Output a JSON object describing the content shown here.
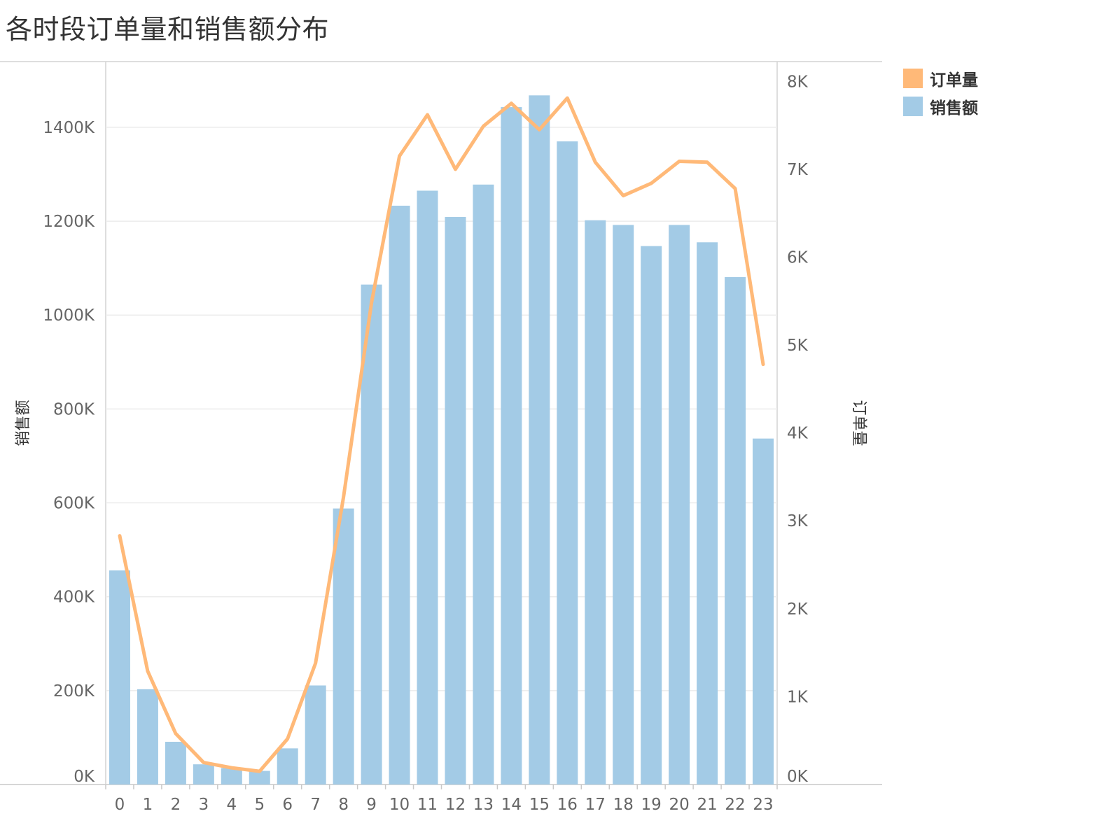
{
  "chart_data": {
    "type": "bar",
    "title": "各时段订单量和销售额分布",
    "categories": [
      "0",
      "1",
      "2",
      "3",
      "4",
      "5",
      "6",
      "7",
      "8",
      "9",
      "10",
      "11",
      "12",
      "13",
      "14",
      "15",
      "16",
      "17",
      "18",
      "19",
      "20",
      "21",
      "22",
      "23"
    ],
    "series": [
      {
        "name": "销售额",
        "type": "bar",
        "axis": "left",
        "color": "#a3cbe6",
        "values": [
          456,
          203,
          91,
          43,
          35,
          29,
          77,
          211,
          588,
          1065,
          1233,
          1265,
          1209,
          1278,
          1443,
          1468,
          1370,
          1202,
          1192,
          1147,
          1192,
          1155,
          1081,
          737
        ]
      },
      {
        "name": "订单量",
        "type": "line",
        "axis": "right",
        "color": "#ffb978",
        "values": [
          2830,
          1290,
          580,
          250,
          190,
          150,
          520,
          1380,
          3270,
          5480,
          7150,
          7620,
          7000,
          7490,
          7750,
          7450,
          7810,
          7080,
          6700,
          6840,
          7090,
          7080,
          6780,
          4780
        ]
      }
    ],
    "y_left": {
      "label": "销售额",
      "range": [
        0,
        1540
      ],
      "ticks": [
        0,
        200,
        400,
        600,
        800,
        1000,
        1200,
        1400
      ],
      "tick_labels": [
        "0K",
        "200K",
        "400K",
        "600K",
        "800K",
        "1000K",
        "1200K",
        "1400K"
      ]
    },
    "y_right": {
      "label": "订单量",
      "range": [
        0,
        8225
      ],
      "ticks": [
        0,
        1000,
        2000,
        3000,
        4000,
        5000,
        6000,
        7000,
        8000
      ],
      "tick_labels": [
        "0K",
        "1K",
        "2K",
        "3K",
        "4K",
        "5K",
        "6K",
        "7K",
        "8K"
      ]
    },
    "grid": true,
    "legend_position": "top-right"
  },
  "legend": {
    "items": [
      {
        "label": "订单量",
        "color": "#ffb978"
      },
      {
        "label": "销售额",
        "color": "#a3cbe6"
      }
    ]
  }
}
